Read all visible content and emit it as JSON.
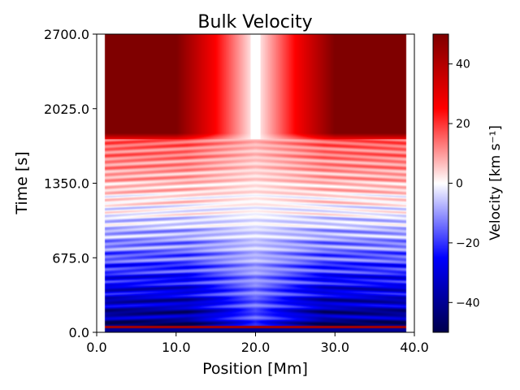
{
  "chart_data": {
    "type": "heatmap",
    "title": "Bulk Velocity",
    "xlabel": "Position [Mm]",
    "ylabel": "Time [s]",
    "xlim": [
      0.0,
      40.0
    ],
    "ylim": [
      0.0,
      2700.0
    ],
    "xticks": [
      0.0,
      10.0,
      20.0,
      30.0,
      40.0
    ],
    "xtick_labels": [
      "0.0",
      "10.0",
      "20.0",
      "30.0",
      "40.0"
    ],
    "yticks": [
      0.0,
      675.0,
      1350.0,
      2025.0,
      2700.0
    ],
    "ytick_labels": [
      "0.0",
      "675.0",
      "1350.0",
      "2025.0",
      "2700.0"
    ],
    "colorbar": {
      "label": "Velocity [km s⁻¹]",
      "range": [
        -50,
        50
      ],
      "ticks": [
        -40,
        -20,
        0,
        20,
        40
      ],
      "tick_labels": [
        "−40",
        "−20",
        "0",
        "20",
        "40"
      ],
      "cmap": "seismic",
      "stops": [
        "#00004c",
        "#0000ff",
        "#ffffff",
        "#ff0000",
        "#7f0000"
      ]
    },
    "data_extent": {
      "x_min": 1.0,
      "x_max": 39.0
    },
    "description_values": {
      "upper_region_velocity_edges": 50,
      "transition_time": 1750,
      "lower_region_min_velocity": -45
    }
  }
}
